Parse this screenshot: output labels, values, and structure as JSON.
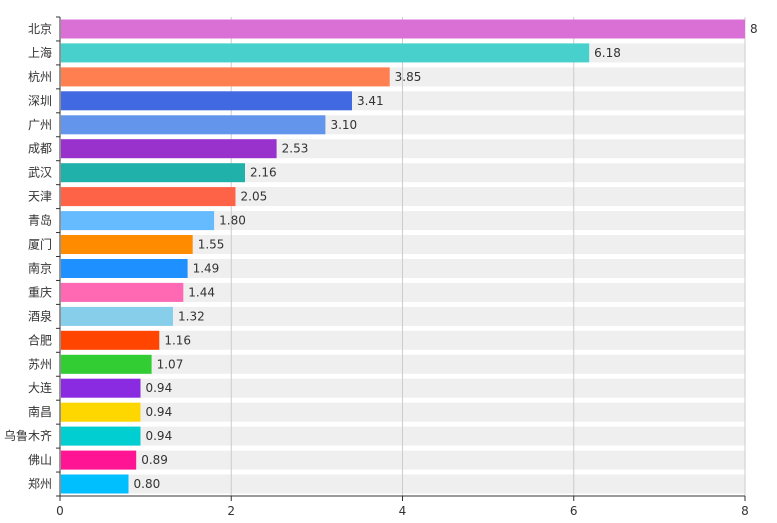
{
  "chart_data": {
    "type": "bar",
    "orientation": "horizontal",
    "title": "",
    "xlabel": "",
    "ylabel": "",
    "xlim": [
      0,
      8
    ],
    "grid": "vertical",
    "categories": [
      "北京",
      "上海",
      "杭州",
      "深圳",
      "广州",
      "成都",
      "武汉",
      "天津",
      "青岛",
      "厦门",
      "南京",
      "重庆",
      "酒泉",
      "合肥",
      "苏州",
      "大连",
      "南昌",
      "乌鲁木齐",
      "佛山",
      "郑州"
    ],
    "values": [
      8,
      6.18,
      3.85,
      3.41,
      3.1,
      2.53,
      2.16,
      2.05,
      1.8,
      1.55,
      1.49,
      1.44,
      1.32,
      1.16,
      1.07,
      0.94,
      0.94,
      0.94,
      0.89,
      0.8
    ],
    "value_labels": [
      "8",
      "6.18",
      "3.85",
      "3.41",
      "3.10",
      "2.53",
      "2.16",
      "2.05",
      "1.80",
      "1.55",
      "1.49",
      "1.44",
      "1.32",
      "1.16",
      "1.07",
      "0.94",
      "0.94",
      "0.94",
      "0.89",
      "0.80"
    ],
    "colors": [
      "#DA70D6",
      "#48D1CC",
      "#FF7F50",
      "#4169E1",
      "#6495ED",
      "#9932CC",
      "#20B2AA",
      "#FF6347",
      "#66BBFF",
      "#FF8C00",
      "#1E90FF",
      "#FF69B4",
      "#87CEEB",
      "#FF4500",
      "#32CD32",
      "#8A2BE2",
      "#FFD700",
      "#00CED1",
      "#FF1493",
      "#00BFFF"
    ],
    "background_bar_color": "#EFEFEF",
    "x_ticks": [
      "0",
      "2",
      "4",
      "6",
      "8"
    ],
    "x_tick_values": [
      0,
      2,
      4,
      6,
      8
    ]
  }
}
